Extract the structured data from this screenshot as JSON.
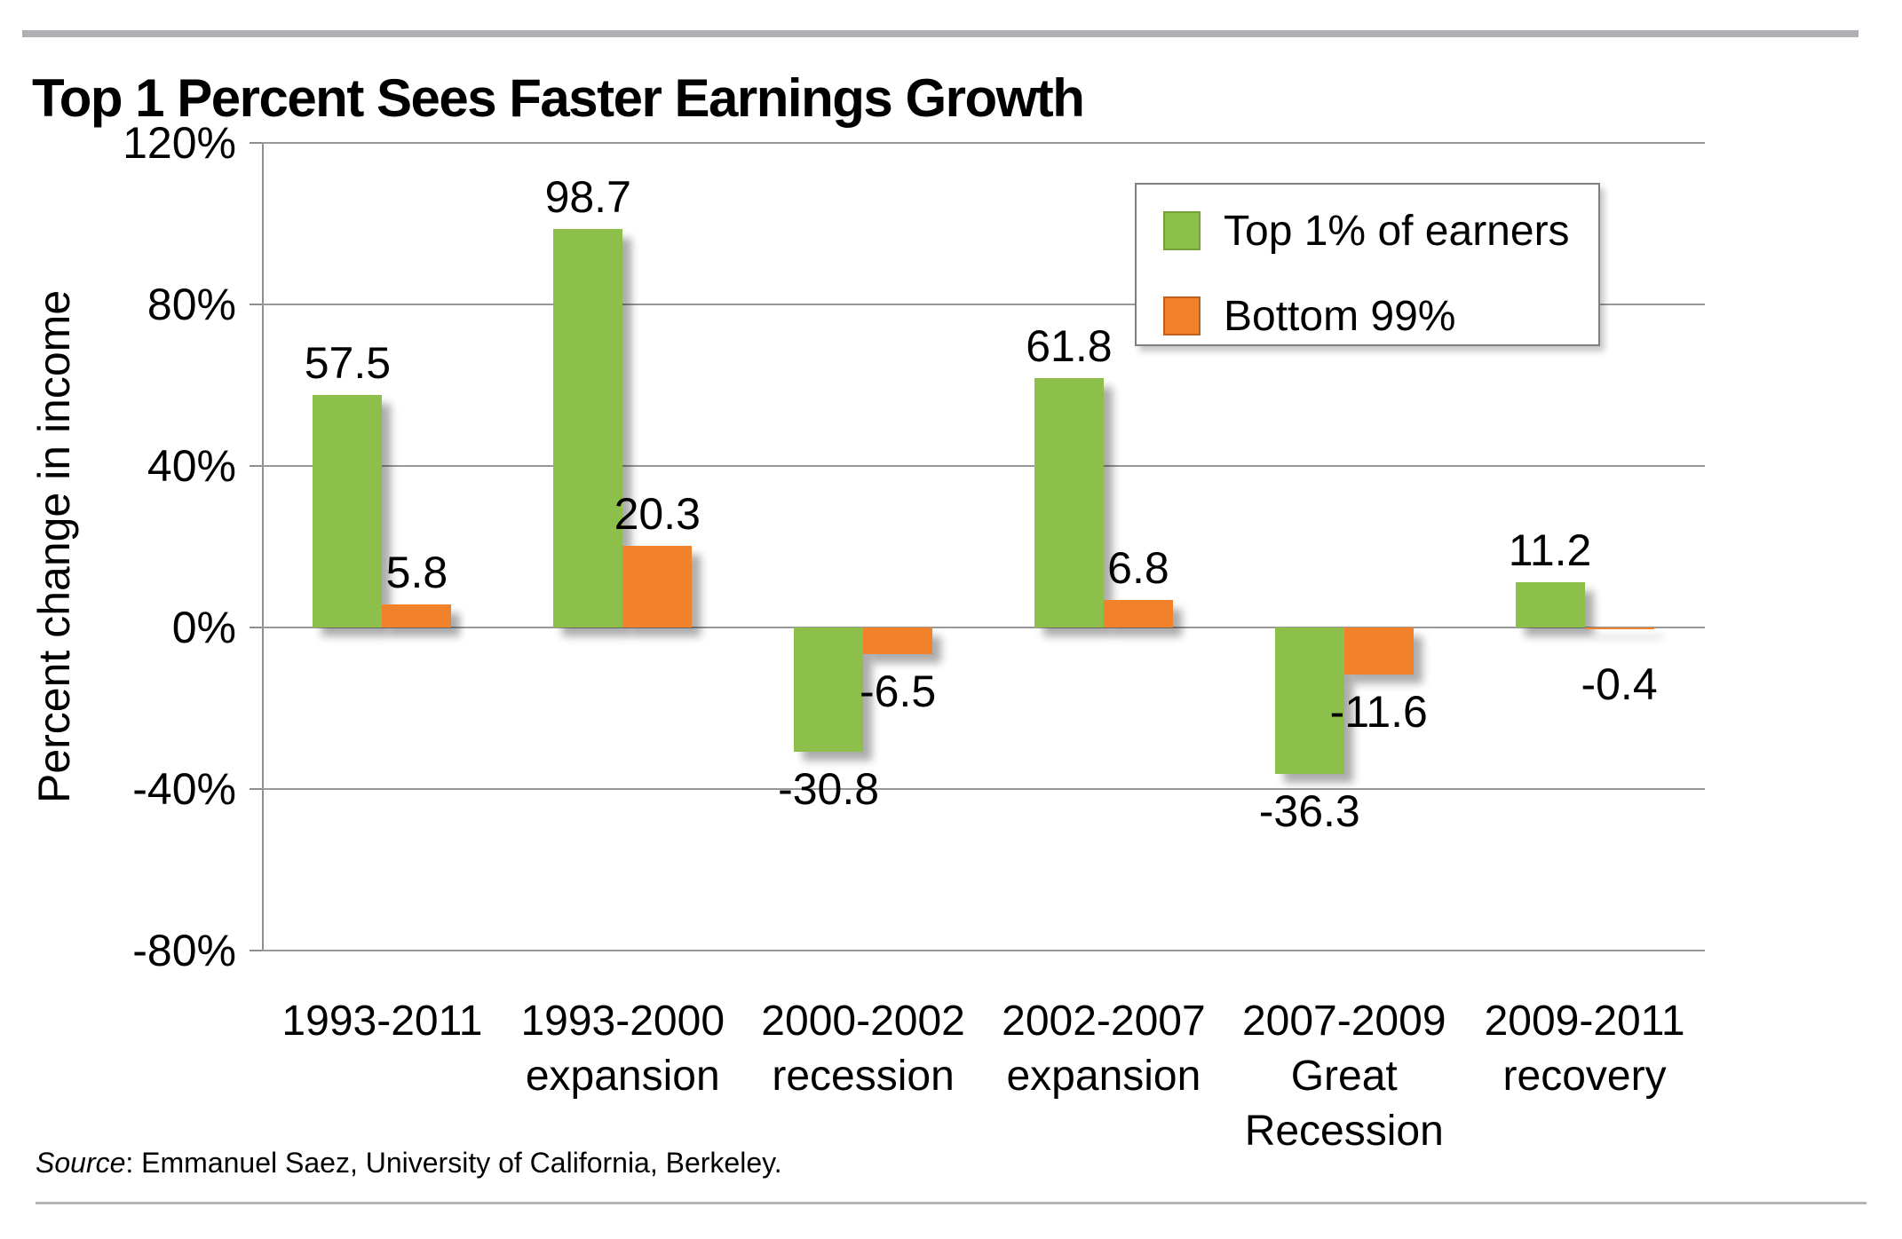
{
  "page": {
    "title": "Top 1 Percent Sees Faster Earnings Growth",
    "source_prefix": "Source",
    "source_suffix": ": Emmanuel Saez, University of California, Berkeley."
  },
  "chart_data": {
    "type": "bar",
    "title": "Top 1 Percent Sees Faster Earnings Growth",
    "xlabel": "",
    "ylabel": "Percent change in income",
    "ylim": [
      -80,
      120
    ],
    "ytick_step": 40,
    "ytick_labels": [
      "120%",
      "80%",
      "40%",
      "0%",
      "-40%",
      "-80%"
    ],
    "grid": true,
    "legend_position": "inside-top-right",
    "categories": [
      "1993-2011",
      "1993-2000 expansion",
      "2000-2002 recession",
      "2002-2007 expansion",
      "2007-2009 Great Recession",
      "2009-2011 recovery"
    ],
    "categories_lines": [
      [
        "1993-2011"
      ],
      [
        "1993-2000",
        "expansion"
      ],
      [
        "2000-2002",
        "recession"
      ],
      [
        "2002-2007",
        "expansion"
      ],
      [
        "2007-2009",
        "Great",
        "Recession"
      ],
      [
        "2009-2011",
        "recovery"
      ]
    ],
    "series": [
      {
        "name": "Top 1% of earners",
        "color": "#8cc04b",
        "values": [
          57.5,
          98.7,
          -30.8,
          61.8,
          -36.3,
          11.2
        ]
      },
      {
        "name": "Bottom 99%",
        "color": "#f1822b",
        "values": [
          5.8,
          20.3,
          -6.5,
          6.8,
          -11.6,
          -0.4
        ]
      }
    ],
    "value_labels": [
      "57.5",
      "98.7",
      "-30.8",
      "61.8",
      "-36.3",
      "11.2",
      "5.8",
      "20.3",
      "-6.5",
      "6.8",
      "-11.6",
      "-0.4"
    ]
  },
  "colors": {
    "top_bar": "#aeb0b5",
    "bottom_line": "#b3b4b8",
    "gridline": "#999999",
    "series_green": "#8cc04b",
    "series_orange": "#f1822b",
    "text": "#000000",
    "legend_border": "#7f7f7f"
  }
}
